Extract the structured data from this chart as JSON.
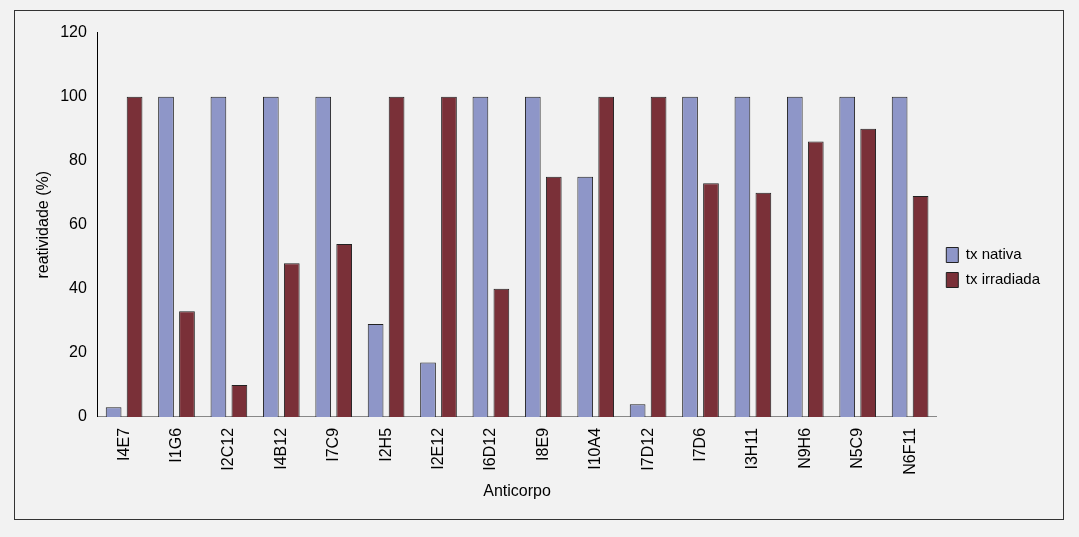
{
  "chart_data": {
    "type": "bar",
    "xlabel": "Anticorpo",
    "ylabel": "reatividade (%)",
    "categories": [
      "I4E7",
      "I1G6",
      "I2C12",
      "I4B12",
      "I7C9",
      "I2H5",
      "I2E12",
      "I6D12",
      "I8E9",
      "I10A4",
      "I7D12",
      "I7D6",
      "I3H11",
      "N9H6",
      "N5C9",
      "N6F11"
    ],
    "series": [
      {
        "name": "tx nativa",
        "color": "#8e96c8",
        "values": [
          3,
          100,
          100,
          100,
          100,
          29,
          17,
          100,
          100,
          75,
          4,
          100,
          100,
          100,
          100,
          100
        ]
      },
      {
        "name": "tx irradiada",
        "color": "#7a3038",
        "values": [
          100,
          33,
          10,
          48,
          54,
          100,
          100,
          40,
          75,
          100,
          100,
          73,
          70,
          86,
          90,
          69
        ]
      }
    ],
    "ylim": [
      0,
      120
    ],
    "yticks": [
      0,
      20,
      40,
      60,
      80,
      100,
      120
    ],
    "grid": false,
    "legend": "right"
  }
}
